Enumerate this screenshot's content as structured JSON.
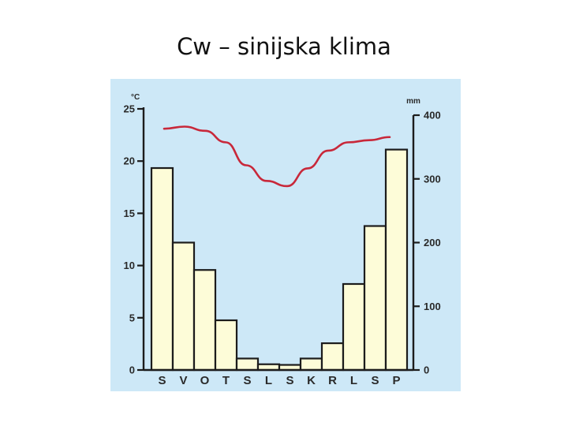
{
  "slide": {
    "title": "Cw – sinijska klima"
  },
  "colors": {
    "background": "#cde8f7",
    "bar_fill": "#fdfcd8",
    "bar_stroke": "#1c1c1c",
    "line": "#c8283a",
    "axis": "#1c1c1c"
  },
  "chart_data": {
    "type": "bar+line",
    "categories": [
      "S",
      "V",
      "O",
      "T",
      "S",
      "L",
      "S",
      "K",
      "R",
      "L",
      "S",
      "P"
    ],
    "left_axis": {
      "unit": "°C",
      "ticks": [
        0,
        5,
        10,
        15,
        20,
        25
      ],
      "ylim": [
        0,
        25
      ]
    },
    "right_axis": {
      "unit": "mm",
      "ticks": [
        0,
        100,
        200,
        300,
        400
      ],
      "ylim": [
        0,
        400
      ]
    },
    "series": [
      {
        "type": "bar",
        "axis": "right",
        "values": [
          317,
          200,
          157,
          78,
          18,
          9,
          8,
          18,
          42,
          135,
          226,
          346
        ]
      },
      {
        "type": "line",
        "axis": "left",
        "values": [
          23.1,
          23.3,
          22.9,
          21.8,
          19.6,
          18.1,
          17.6,
          19.3,
          21.0,
          21.8,
          22.0,
          22.3
        ]
      }
    ],
    "grid": false,
    "legend": "none"
  }
}
